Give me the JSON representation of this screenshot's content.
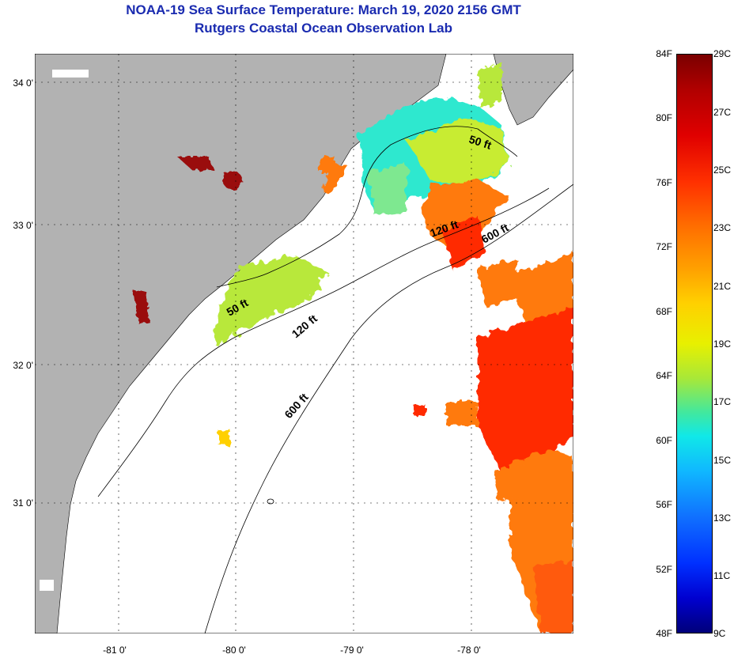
{
  "title_line1": "NOAA-19 Sea Surface Temperature:  March 19, 2020 2156 GMT",
  "title_line2": "Rutgers Coastal Ocean Observation Lab",
  "lat_labels": [
    "34 0'",
    "33 0'",
    "32 0'",
    "31 0'"
  ],
  "lon_labels": [
    "-81 0'",
    "-80 0'",
    "-79 0'",
    "-78 0'"
  ],
  "isobath_labels": {
    "shelf_50_north": "50 ft",
    "shelf_120_north": "120 ft",
    "shelf_600_north": "600 ft",
    "shelf_50_south": "50 ft",
    "shelf_120_south": "120 ft",
    "shelf_600_south": "600 ft"
  },
  "colorbar": {
    "fahrenheit": [
      "84F",
      "80F",
      "76F",
      "72F",
      "68F",
      "64F",
      "60F",
      "56F",
      "52F",
      "48F"
    ],
    "celsius": [
      "29C",
      "27C",
      "25C",
      "23C",
      "21C",
      "19C",
      "17C",
      "15C",
      "13C",
      "11C",
      "9C"
    ]
  },
  "colors": {
    "land": "#b2b2b2",
    "title": "#1a2bb0",
    "warm": "#ff2a00",
    "orange": "#ff7d10",
    "yellow_green": "#c8e838",
    "cyan": "#20e8d8",
    "dark_red": "#9a0a0a"
  }
}
